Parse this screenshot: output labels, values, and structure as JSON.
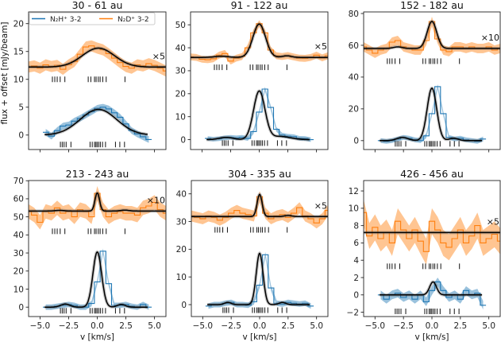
{
  "figure": {
    "ylabel": "flux + offset [mJy/beam]",
    "xlabel": "v [km/s]",
    "legend": [
      {
        "label": "N₂H⁺ 3-2",
        "color": "#1f77b4"
      },
      {
        "label": "N₂D⁺ 3-2",
        "color": "#ff7f0e"
      }
    ],
    "legend_placement": "top of first panel",
    "model_color": "#000000",
    "sample_color": "#555555"
  },
  "chart_data": [
    {
      "type": "line",
      "title": "30 - 61 au",
      "scale_label": "×5",
      "xlim": [
        -6,
        6
      ],
      "ylim": [
        -2.6,
        22.1
      ],
      "xticks": [
        -5,
        -2.5,
        0,
        2.5,
        5
      ],
      "xtick_labels": [
        "−5.0",
        "−2.5",
        "0.0",
        "2.5",
        "5.0"
      ],
      "show_xtick_labels": false,
      "yticks": [
        0,
        5,
        10,
        15,
        20
      ],
      "n2dp": {
        "v_start": -6,
        "v_step": 0.5,
        "flux": [
          12.2,
          12.4,
          12.0,
          12.6,
          12.3,
          12.5,
          11.8,
          12.6,
          13.2,
          14.5,
          15.8,
          16.0,
          15.6,
          15.3,
          14.6,
          13.8,
          13.0,
          12.3,
          12.0,
          12.6,
          12.4,
          12.8,
          12.5,
          12.0,
          11.5
        ],
        "uncertainty": 1.0,
        "model": {
          "baseline": 12.2,
          "components": [
            {
              "v": 0.1,
              "amp": 3.4,
              "sigma": 1.4
            }
          ]
        },
        "tick_level": 10.0
      },
      "n2hp": {
        "v_start": -4.5,
        "v_step": 0.5,
        "flux": [
          0.5,
          -0.2,
          0.8,
          1.6,
          1.8,
          2.5,
          3.0,
          3.6,
          4.2,
          4.8,
          5.0,
          4.7,
          4.0,
          3.2,
          2.0,
          0.8,
          0.2,
          -0.3,
          -0.8
        ],
        "uncertainty": 0.6,
        "model": {
          "baseline": 0,
          "components": [
            {
              "v": 0.1,
              "amp": 4.6,
              "sigma": 1.6
            }
          ]
        },
        "tick_level": -1.7
      }
    },
    {
      "type": "line",
      "title": "91 - 122 au",
      "scale_label": "×5",
      "xlim": [
        -6,
        6
      ],
      "ylim": [
        -4.3,
        55.6
      ],
      "xticks": [
        -5,
        -2.5,
        0,
        2.5,
        5
      ],
      "xtick_labels": [
        "−5.0",
        "−2.5",
        "0.0",
        "2.5",
        "5.0"
      ],
      "show_xtick_labels": false,
      "yticks": [
        0,
        10,
        20,
        30,
        40,
        50
      ],
      "n2dp": {
        "v_start": -6,
        "v_step": 0.5,
        "flux": [
          36.0,
          35.8,
          35.0,
          34.8,
          35.2,
          36.8,
          37.5,
          34.2,
          35.5,
          36.2,
          40,
          46.5,
          50.5,
          46.5,
          39,
          36.5,
          36.2,
          36.6,
          36.0,
          35.5,
          35.4,
          35.8,
          36.8,
          35.6,
          36.5
        ],
        "uncertainty": 1.5,
        "model": {
          "baseline": 35.8,
          "components": [
            {
              "v": 0,
              "amp": 14.5,
              "sigma": 0.55
            },
            {
              "v": -3.3,
              "amp": 0.5,
              "sigma": 0.6
            },
            {
              "v": 2.4,
              "amp": 0.7,
              "sigma": 0.4
            }
          ]
        },
        "tick_level": 31.5
      },
      "n2hp": {
        "v_start": -4.5,
        "v_step": 0.5,
        "flux": [
          0.5,
          0.2,
          0.4,
          0.8,
          1.0,
          0.8,
          1.0,
          0.5,
          3.5,
          12,
          22,
          14,
          4.5,
          2.0,
          1.5,
          1.3,
          0.6,
          0.5,
          0.0
        ],
        "uncertainty": 1.0,
        "model": {
          "baseline": 0,
          "components": [
            {
              "v": 0,
              "amp": 21,
              "sigma": 0.5
            },
            {
              "v": -2.9,
              "amp": 1.0,
              "sigma": 0.6
            },
            {
              "v": 1.8,
              "amp": 1.4,
              "sigma": 0.9
            }
          ]
        },
        "tick_level": -1.5
      }
    },
    {
      "type": "line",
      "title": "152 - 182 au",
      "scale_label": "×10",
      "xlim": [
        -6,
        6
      ],
      "ylim": [
        -5.6,
        81
      ],
      "xticks": [
        -5,
        -2.5,
        0,
        2.5,
        5
      ],
      "xtick_labels": [
        "−5.0",
        "−2.5",
        "0.0",
        "2.5",
        "5.0"
      ],
      "show_xtick_labels": false,
      "yticks": [
        0,
        20,
        40,
        60,
        80
      ],
      "n2dp": {
        "v_start": -6,
        "v_step": 0.5,
        "flux": [
          59,
          57,
          55,
          57,
          58,
          62,
          63,
          59,
          58,
          57,
          57,
          63,
          75,
          64,
          57,
          56,
          59,
          59,
          58,
          59,
          58,
          58,
          59,
          57,
          58
        ],
        "uncertainty": 3.0,
        "model": {
          "baseline": 58,
          "components": [
            {
              "v": 0,
              "amp": 17,
              "sigma": 0.42
            },
            {
              "v": -3.0,
              "amp": 1.0,
              "sigma": 0.4
            }
          ]
        },
        "tick_level": 50
      },
      "n2hp": {
        "v_start": -4.5,
        "v_step": 0.5,
        "flux": [
          0,
          -0.5,
          0,
          1,
          2,
          1.5,
          0.5,
          0,
          3,
          17,
          34,
          17,
          2,
          1,
          1.5,
          0.5,
          0,
          -0.5,
          1
        ],
        "uncertainty": 1.5,
        "model": {
          "baseline": 0,
          "components": [
            {
              "v": 0,
              "amp": 33,
              "sigma": 0.42
            },
            {
              "v": -2.6,
              "amp": 2,
              "sigma": 0.5
            },
            {
              "v": 1.9,
              "amp": 1.5,
              "sigma": 0.4
            }
          ]
        },
        "tick_level": -2
      }
    },
    {
      "type": "line",
      "title": "213 - 243 au",
      "scale_label": "×10",
      "xlim": [
        -6,
        6
      ],
      "ylim": [
        -5.2,
        70.1
      ],
      "xticks": [
        -5,
        -2.5,
        0,
        2.5,
        5
      ],
      "xtick_labels": [
        "−5.0",
        "−2.5",
        "0.0",
        "2.5",
        "5.0"
      ],
      "show_xtick_labels": true,
      "yticks": [
        0,
        10,
        20,
        30,
        40,
        50,
        60,
        70
      ],
      "n2dp": {
        "v_start": -6,
        "v_step": 0.5,
        "flux": [
          53,
          51,
          47,
          53,
          52,
          55,
          52,
          53,
          50,
          54,
          53,
          50,
          63,
          54,
          50,
          52,
          53,
          52,
          52,
          51,
          55,
          56,
          58,
          54,
          52
        ],
        "uncertainty": 4.0,
        "model": {
          "baseline": 53.2,
          "components": [
            {
              "v": 0,
              "amp": 10,
              "sigma": 0.2
            },
            {
              "v": -3.3,
              "amp": 0.4,
              "sigma": 0.4
            },
            {
              "v": 2.4,
              "amp": 0.5,
              "sigma": 0.4
            }
          ]
        },
        "tick_level": 42
      },
      "n2hp": {
        "v_start": -4.5,
        "v_step": 0.5,
        "flux": [
          0,
          0,
          0.5,
          1,
          1.5,
          1,
          0,
          0,
          2,
          14,
          31,
          13,
          1,
          1,
          1.5,
          0.5,
          0,
          1.5,
          0
        ],
        "uncertainty": 1.5,
        "model": {
          "baseline": 0,
          "components": [
            {
              "v": 0,
              "amp": 30.5,
              "sigma": 0.38
            },
            {
              "v": -2.8,
              "amp": 1.7,
              "sigma": 0.4
            },
            {
              "v": 2.1,
              "amp": 1.5,
              "sigma": 0.35
            }
          ]
        },
        "tick_level": -2
      }
    },
    {
      "type": "line",
      "title": "304 - 335 au",
      "scale_label": "×5",
      "xlim": [
        -6,
        6
      ],
      "ylim": [
        -4.3,
        44.8
      ],
      "xticks": [
        -5,
        -2.5,
        0,
        2.5,
        5
      ],
      "xtick_labels": [
        "−5.0",
        "−2.5",
        "0.0",
        "2.5",
        "5.0"
      ],
      "show_xtick_labels": true,
      "yticks": [
        0,
        10,
        20,
        30,
        40
      ],
      "n2dp": {
        "v_start": -6,
        "v_step": 0.5,
        "flux": [
          32,
          31.5,
          31,
          32,
          31.5,
          30.5,
          31.5,
          33,
          34,
          33,
          32.5,
          32,
          39,
          33,
          31,
          32,
          32.5,
          31.5,
          33,
          35,
          32,
          31,
          29.5,
          31,
          34
        ],
        "uncertainty": 2.0,
        "model": {
          "baseline": 31.8,
          "components": [
            {
              "v": 0,
              "amp": 8,
              "sigma": 0.22
            },
            {
              "v": 2.5,
              "amp": 0.4,
              "sigma": 0.3
            }
          ]
        },
        "tick_level": 27
      },
      "n2hp": {
        "v_start": -4.5,
        "v_step": 0.5,
        "flux": [
          -0.5,
          0,
          0,
          0.5,
          0.8,
          0,
          0,
          -0.2,
          1,
          7,
          18,
          6,
          0.5,
          0.2,
          0.8,
          0.5,
          0.2,
          0.5,
          -0.5
        ],
        "uncertainty": 1.0,
        "model": {
          "baseline": 0,
          "components": [
            {
              "v": 0,
              "amp": 18.5,
              "sigma": 0.3
            },
            {
              "v": -2.8,
              "amp": 0.8,
              "sigma": 0.3
            },
            {
              "v": 2.0,
              "amp": 0.8,
              "sigma": 0.3
            }
          ]
        },
        "tick_level": -2
      }
    },
    {
      "type": "line",
      "title": "426 - 456 au",
      "scale_label": "×5",
      "xlim": [
        -6,
        6
      ],
      "ylim": [
        -2.5,
        13.2
      ],
      "xticks": [
        -5,
        -2.5,
        0,
        2.5,
        5
      ],
      "xtick_labels": [
        "−5.0",
        "−2.5",
        "0.0",
        "2.5",
        "5.0"
      ],
      "show_xtick_labels": true,
      "yticks": [
        -2,
        0,
        2,
        4,
        6,
        8,
        10,
        12
      ],
      "ytick_labels": [
        "−2",
        "0",
        "2",
        "4",
        "6",
        "8",
        "10",
        "12"
      ],
      "n2dp": {
        "v_start": -6,
        "v_step": 0.5,
        "flux": [
          9.5,
          6.8,
          7.8,
          6.5,
          7.2,
          6,
          8.5,
          7.5,
          6.5,
          7.5,
          6.2,
          5,
          8.5,
          7.5,
          6,
          5.5,
          6.5,
          7.5,
          6,
          6.8,
          8,
          6,
          6.5,
          7,
          6.2
        ],
        "uncertainty": 1.5,
        "model": {
          "baseline": 7.2,
          "components": []
        },
        "tick_level": 3.3
      },
      "n2hp": {
        "v_start": -4.5,
        "v_step": 0.5,
        "flux": [
          0,
          -0.5,
          0,
          0.2,
          -0.3,
          0,
          -0.5,
          0,
          -0.8,
          0.5,
          1.5,
          0.5,
          -0.3,
          0,
          -0.5,
          0.5,
          0,
          0.2,
          -1.2
        ],
        "uncertainty": 0.5,
        "model": {
          "baseline": 0,
          "components": [
            {
              "v": 0.1,
              "amp": 1.5,
              "sigma": 0.3
            }
          ]
        },
        "tick_level": -1.9
      }
    }
  ],
  "hyperfine_ticks": {
    "n2dp": [
      -3.92,
      -3.71,
      -3.5,
      -3.24,
      -2.83,
      -0.79,
      -0.56,
      -0.24,
      -0.1,
      0.09,
      0.25,
      0.48,
      0.78,
      2.42
    ],
    "n2hp": [
      -3.22,
      -3.06,
      -2.9,
      -2.72,
      -2.3,
      -0.63,
      -0.44,
      -0.24,
      -0.12,
      -0.01,
      0.13,
      0.27,
      0.46,
      0.72,
      1.59,
      1.97,
      2.38
    ]
  }
}
